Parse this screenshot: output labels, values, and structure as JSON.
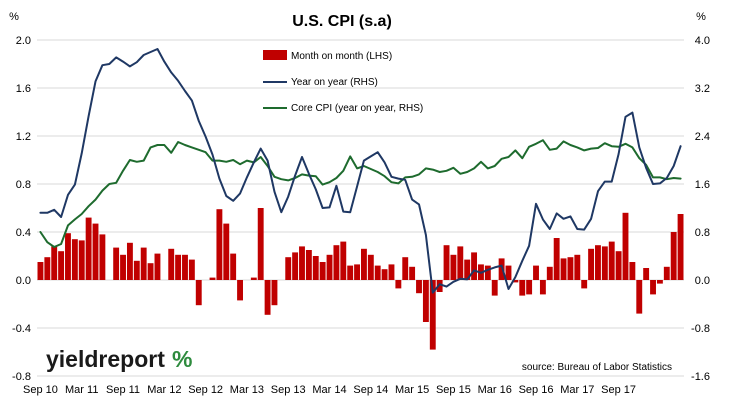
{
  "chart_data": {
    "type": "bar+line",
    "title": "U.S. CPI (s.a)",
    "left_unit": "%",
    "right_unit": "%",
    "left_axis": {
      "min": -0.8,
      "max": 2.0,
      "ticks": [
        "2.0",
        "1.6",
        "1.2",
        "0.8",
        "0.4",
        "0.0",
        "-0.4",
        "-0.8"
      ]
    },
    "right_axis": {
      "min": -1.6,
      "max": 4.0,
      "ticks": [
        "4.0",
        "3.2",
        "2.4",
        "1.6",
        "0.8",
        "0.0",
        "-0.8",
        "-1.6"
      ]
    },
    "x_tick_labels": [
      "Sep 10",
      "Mar 11",
      "Sep 11",
      "Mar 12",
      "Sep 12",
      "Mar 13",
      "Sep 13",
      "Mar 14",
      "Sep 14",
      "Mar 15",
      "Sep 15",
      "Mar 16",
      "Sep 16",
      "Mar 17",
      "Sep 17"
    ],
    "grid": true,
    "legend_position": "top-center",
    "series": [
      {
        "name": "Month on month (LHS)",
        "kind": "bar",
        "axis": "left",
        "color": "#C00000",
        "values": [
          0.15,
          0.19,
          0.28,
          0.24,
          0.39,
          0.34,
          0.33,
          0.52,
          0.47,
          0.38,
          0.0,
          0.27,
          0.21,
          0.31,
          0.16,
          0.27,
          0.14,
          0.22,
          0.0,
          0.26,
          0.21,
          0.21,
          0.17,
          -0.21,
          0.0,
          0.02,
          0.59,
          0.47,
          0.22,
          -0.17,
          0.0,
          0.02,
          0.6,
          -0.29,
          -0.21,
          0.0,
          0.19,
          0.23,
          0.28,
          0.25,
          0.2,
          0.15,
          0.21,
          0.29,
          0.32,
          0.12,
          0.13,
          0.26,
          0.21,
          0.12,
          0.09,
          0.13,
          -0.07,
          0.19,
          0.11,
          -0.11,
          -0.35,
          -0.58,
          -0.1,
          0.29,
          0.21,
          0.28,
          0.17,
          0.23,
          0.13,
          0.12,
          -0.13,
          0.18,
          0.12,
          -0.02,
          -0.13,
          -0.12,
          0.12,
          -0.12,
          0.11,
          0.35,
          0.18,
          0.19,
          0.21,
          -0.07,
          0.26,
          0.29,
          0.28,
          0.32,
          0.24,
          0.56,
          0.15,
          -0.28,
          0.1,
          -0.12,
          -0.03,
          0.11,
          0.4,
          0.55
        ]
      },
      {
        "name": "Year on year (RHS)",
        "kind": "line",
        "axis": "right",
        "color": "#1F3864",
        "values": [
          1.12,
          1.12,
          1.17,
          1.05,
          1.42,
          1.59,
          2.11,
          2.73,
          3.31,
          3.58,
          3.6,
          3.71,
          3.64,
          3.56,
          3.63,
          3.75,
          3.8,
          3.85,
          3.64,
          3.46,
          3.32,
          3.15,
          2.99,
          2.65,
          2.39,
          2.09,
          1.69,
          1.4,
          1.32,
          1.44,
          1.71,
          1.96,
          2.19,
          1.99,
          1.47,
          1.13,
          1.39,
          1.74,
          2.05,
          1.77,
          1.51,
          1.2,
          1.21,
          1.57,
          1.14,
          1.13,
          1.56,
          1.99,
          2.06,
          2.13,
          1.96,
          1.72,
          1.69,
          1.67,
          1.34,
          1.26,
          0.75,
          -0.21,
          -0.07,
          -0.11,
          -0.03,
          0.02,
          0.01,
          0.16,
          0.12,
          0.17,
          0.21,
          0.24,
          -0.15,
          0.05,
          0.32,
          0.57,
          1.27,
          1.01,
          0.85,
          1.11,
          1.02,
          1.06,
          0.85,
          0.84,
          1.02,
          1.48,
          1.64,
          1.64,
          2.1,
          2.72,
          2.79,
          2.21,
          1.87,
          1.6,
          1.61,
          1.7,
          1.9,
          2.23
        ]
      },
      {
        "name": "Core CPI (year on year, RHS)",
        "kind": "line",
        "axis": "right",
        "color": "#1E6B2E",
        "values": [
          0.8,
          0.63,
          0.55,
          0.6,
          0.91,
          1.01,
          1.1,
          1.23,
          1.34,
          1.49,
          1.6,
          1.62,
          1.82,
          2.0,
          1.97,
          1.99,
          2.21,
          2.25,
          2.25,
          2.12,
          2.3,
          2.25,
          2.21,
          2.17,
          2.13,
          1.99,
          1.99,
          1.97,
          2.0,
          1.93,
          1.99,
          1.96,
          2.05,
          1.9,
          1.72,
          1.68,
          1.66,
          1.7,
          1.76,
          1.74,
          1.73,
          1.59,
          1.63,
          1.7,
          1.82,
          2.06,
          1.86,
          1.9,
          1.85,
          1.8,
          1.73,
          1.63,
          1.61,
          1.71,
          1.72,
          1.76,
          1.86,
          1.84,
          1.8,
          1.82,
          1.87,
          1.77,
          1.8,
          1.86,
          1.97,
          1.86,
          1.9,
          2.02,
          2.05,
          2.16,
          2.03,
          2.22,
          2.27,
          2.33,
          2.17,
          2.19,
          2.31,
          2.25,
          2.21,
          2.16,
          2.19,
          2.2,
          2.28,
          2.23,
          2.22,
          2.27,
          2.21,
          2.03,
          1.92,
          1.71,
          1.71,
          1.68,
          1.7,
          1.69
        ]
      }
    ],
    "source": "source: Bureau of Labor Statistics",
    "logo": {
      "main": "yieldreport",
      "mark": "%"
    },
    "colors": {
      "bars": "#C00000",
      "yoy": "#1F3864",
      "core": "#1E6B2E",
      "grid": "#D9D9D9"
    }
  }
}
